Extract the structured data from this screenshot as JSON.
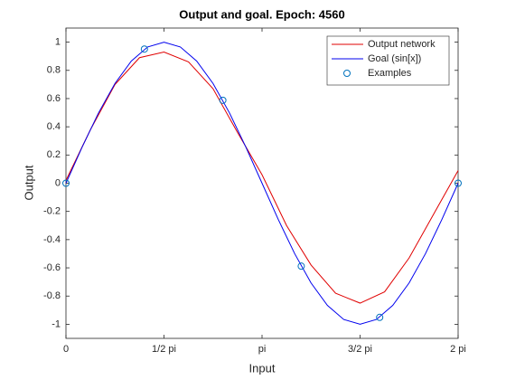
{
  "chart_data": {
    "type": "line",
    "title": "Output and goal. Epoch: 4560",
    "xlabel": "Input",
    "ylabel": "Output",
    "xlim": [
      0,
      6.2832
    ],
    "ylim": [
      -1.1,
      1.1
    ],
    "xticks": [
      {
        "value": 0,
        "label": "0"
      },
      {
        "value": 1.5708,
        "label": "1/2 pi"
      },
      {
        "value": 3.1416,
        "label": "pi"
      },
      {
        "value": 4.7124,
        "label": "3/2 pi"
      },
      {
        "value": 6.2832,
        "label": "2 pi"
      }
    ],
    "yticks": [
      -1,
      -0.8,
      -0.6,
      -0.4,
      -0.2,
      0,
      0.2,
      0.4,
      0.6,
      0.8,
      1
    ],
    "legend": "northeast",
    "series": [
      {
        "name": "Output network",
        "color": "#e00000",
        "style": "line",
        "x": [
          0,
          0.3927,
          0.7854,
          1.1781,
          1.5708,
          1.9635,
          2.3562,
          2.7489,
          3.1416,
          3.5343,
          3.927,
          4.3197,
          4.7124,
          5.1051,
          5.4978,
          5.8905,
          6.2832
        ],
        "values": [
          0.02,
          0.38,
          0.7,
          0.89,
          0.93,
          0.86,
          0.67,
          0.36,
          0.06,
          -0.3,
          -0.58,
          -0.78,
          -0.85,
          -0.77,
          -0.53,
          -0.22,
          0.09
        ]
      },
      {
        "name": "Goal (sin[x])",
        "color": "#0000ee",
        "style": "line",
        "x": [
          0,
          0.2618,
          0.5236,
          0.7854,
          1.0472,
          1.309,
          1.5708,
          1.8326,
          2.0944,
          2.3562,
          2.618,
          2.8798,
          3.1416,
          3.4034,
          3.6652,
          3.927,
          4.1888,
          4.4506,
          4.7124,
          4.9742,
          5.236,
          5.4978,
          5.7596,
          6.0214,
          6.2832
        ],
        "values": [
          0,
          0.2588,
          0.5,
          0.7071,
          0.866,
          0.9659,
          1,
          0.9659,
          0.866,
          0.7071,
          0.5,
          0.2588,
          0,
          -0.2588,
          -0.5,
          -0.7071,
          -0.866,
          -0.9659,
          -1,
          -0.9659,
          -0.866,
          -0.7071,
          -0.5,
          -0.2588,
          0
        ]
      },
      {
        "name": "Examples",
        "color": "#0072bd",
        "style": "marker",
        "x": [
          0,
          1.2566,
          2.5133,
          3.7699,
          5.0265,
          6.2832
        ],
        "values": [
          0,
          0.951,
          0.588,
          -0.588,
          -0.951,
          0
        ]
      }
    ]
  }
}
